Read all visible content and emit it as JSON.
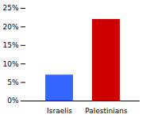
{
  "chart_data": {
    "type": "bar",
    "categories": [
      "Israelis",
      "Palestinians"
    ],
    "values": [
      7.0,
      22.0
    ],
    "colors": [
      "#3366ff",
      "#cc0000"
    ],
    "ylim": [
      0,
      25
    ],
    "yticks": [
      {
        "value": 0,
        "label": "0%"
      },
      {
        "value": 5,
        "label": "5%"
      },
      {
        "value": 10,
        "label": "10%"
      },
      {
        "value": 15,
        "label": "15%"
      },
      {
        "value": 20,
        "label": "20%"
      },
      {
        "value": 25,
        "label": "25%"
      }
    ],
    "grid": false
  }
}
